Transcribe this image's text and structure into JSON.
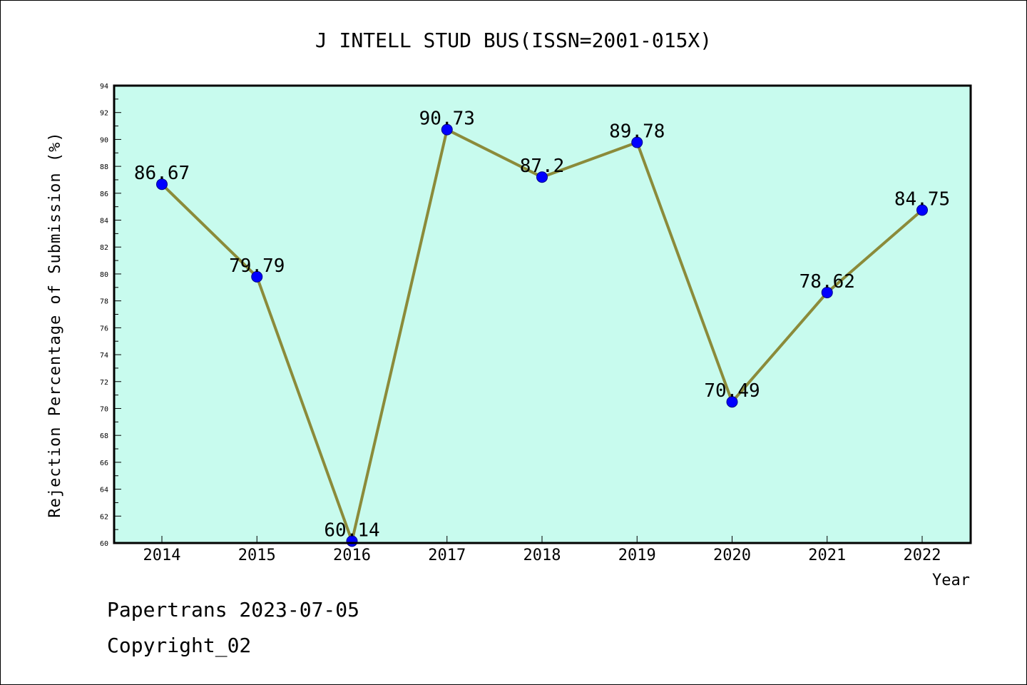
{
  "chart_data": {
    "type": "line",
    "title": "J INTELL STUD BUS(ISSN=2001-015X)",
    "xlabel": "Year",
    "ylabel": "Rejection Percentage of Submission (%)",
    "categories": [
      "2014",
      "2015",
      "2016",
      "2017",
      "2018",
      "2019",
      "2020",
      "2021",
      "2022"
    ],
    "series": [
      {
        "values": [
          86.67,
          79.79,
          60.14,
          90.73,
          87.2,
          89.78,
          70.49,
          78.62,
          84.75
        ],
        "labels": [
          "86.67",
          "79.79",
          "60.14",
          "90.73",
          "87.2",
          "89.78",
          "70.49",
          "78.62",
          "84.75"
        ],
        "line_color": "#8b8b3a",
        "marker_color": "#0000ff"
      }
    ],
    "ylim": [
      60,
      94
    ],
    "yticks": [
      "60",
      "62",
      "64",
      "66",
      "68",
      "70",
      "72",
      "74",
      "76",
      "78",
      "80",
      "82",
      "84",
      "86",
      "88",
      "90",
      "92",
      "94"
    ],
    "plot_background": "#c8fbee",
    "grid": false,
    "legend": "none"
  },
  "footer": {
    "line1": "Papertrans 2023-07-05",
    "line2": "Copyright_02"
  }
}
